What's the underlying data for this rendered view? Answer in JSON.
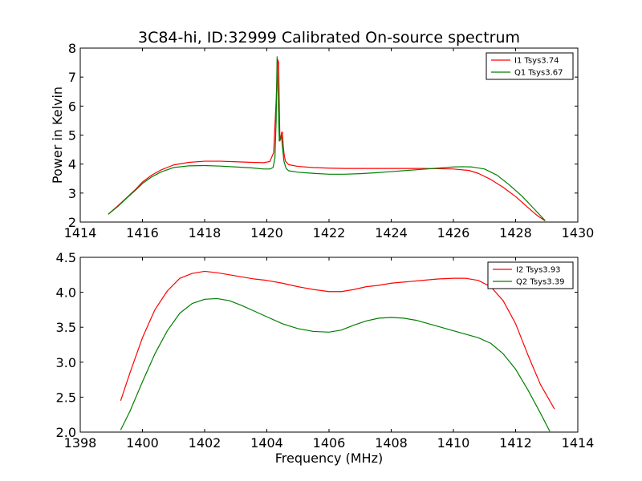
{
  "title": "3C84-hi, ID:32999 Calibrated On-source spectrum",
  "colors": {
    "red": "#ff0000",
    "green": "#007f00"
  },
  "chart_data": [
    {
      "type": "line",
      "ylabel": "Power in Kelvin",
      "xlabel": "",
      "xlim": [
        1414,
        1430
      ],
      "ylim": [
        2,
        8
      ],
      "xticks": [
        1414,
        1416,
        1418,
        1420,
        1422,
        1424,
        1426,
        1428,
        1430
      ],
      "yticks": [
        2,
        3,
        4,
        5,
        6,
        7,
        8
      ],
      "xtick_labels": [
        "1414",
        "1416",
        "1418",
        "1420",
        "1422",
        "1424",
        "1426",
        "1428",
        "1430"
      ],
      "ytick_labels": [
        "2",
        "3",
        "4",
        "5",
        "6",
        "7",
        "8"
      ],
      "grid": false,
      "legend_position": "top-right",
      "series": [
        {
          "name": "I1 Tsys3.74",
          "color": "#ff0000",
          "x": [
            1414.9,
            1415.2,
            1415.5,
            1415.8,
            1416.0,
            1416.3,
            1416.6,
            1417.0,
            1417.5,
            1418.0,
            1418.5,
            1419.0,
            1419.5,
            1419.9,
            1420.1,
            1420.22,
            1420.3,
            1420.35,
            1420.38,
            1420.42,
            1420.48,
            1420.5,
            1420.53,
            1420.56,
            1420.6,
            1420.7,
            1421.0,
            1421.5,
            1422.0,
            1422.5,
            1423.0,
            1423.5,
            1424.0,
            1424.5,
            1425.0,
            1425.5,
            1426.0,
            1426.5,
            1426.8,
            1427.2,
            1427.6,
            1428.0,
            1428.4,
            1428.7,
            1428.95
          ],
          "y": [
            2.27,
            2.55,
            2.85,
            3.15,
            3.38,
            3.62,
            3.8,
            3.97,
            4.06,
            4.1,
            4.1,
            4.08,
            4.06,
            4.05,
            4.09,
            4.4,
            6.2,
            7.6,
            7.5,
            4.8,
            5.1,
            5.1,
            4.6,
            4.3,
            4.1,
            3.98,
            3.92,
            3.88,
            3.86,
            3.85,
            3.85,
            3.85,
            3.85,
            3.85,
            3.85,
            3.84,
            3.83,
            3.78,
            3.68,
            3.47,
            3.2,
            2.88,
            2.5,
            2.22,
            2.04
          ]
        },
        {
          "name": "Q1 Tsys3.67",
          "color": "#007f00",
          "x": [
            1414.9,
            1415.2,
            1415.5,
            1415.8,
            1416.0,
            1416.3,
            1416.6,
            1417.0,
            1417.5,
            1418.0,
            1418.5,
            1419.0,
            1419.5,
            1419.9,
            1420.1,
            1420.2,
            1420.26,
            1420.3,
            1420.33,
            1420.36,
            1420.4,
            1420.44,
            1420.47,
            1420.5,
            1420.55,
            1420.62,
            1420.7,
            1421.0,
            1421.5,
            1422.0,
            1422.5,
            1423.0,
            1423.5,
            1424.0,
            1424.5,
            1425.0,
            1425.5,
            1426.0,
            1426.3,
            1426.6,
            1427.0,
            1427.4,
            1427.8,
            1428.2,
            1428.6,
            1428.95
          ],
          "y": [
            2.27,
            2.53,
            2.83,
            3.12,
            3.33,
            3.56,
            3.73,
            3.88,
            3.94,
            3.95,
            3.93,
            3.9,
            3.87,
            3.83,
            3.83,
            3.88,
            4.2,
            5.5,
            7.7,
            6.5,
            4.8,
            4.85,
            5.0,
            4.6,
            4.1,
            3.85,
            3.77,
            3.72,
            3.68,
            3.65,
            3.65,
            3.67,
            3.7,
            3.74,
            3.78,
            3.82,
            3.86,
            3.9,
            3.91,
            3.9,
            3.83,
            3.62,
            3.28,
            2.9,
            2.45,
            2.05
          ]
        }
      ]
    },
    {
      "type": "line",
      "ylabel": "",
      "xlabel": "Frequency (MHz)",
      "xlim": [
        1398,
        1414
      ],
      "ylim": [
        2.0,
        4.5
      ],
      "xticks": [
        1398,
        1400,
        1402,
        1404,
        1406,
        1408,
        1410,
        1412,
        1414
      ],
      "yticks": [
        2.0,
        2.5,
        3.0,
        3.5,
        4.0,
        4.5
      ],
      "xtick_labels": [
        "1398",
        "1400",
        "1402",
        "1404",
        "1406",
        "1408",
        "1410",
        "1412",
        "1414"
      ],
      "ytick_labels": [
        "2.0",
        "2.5",
        "3.0",
        "3.5",
        "4.0",
        "4.5"
      ],
      "grid": false,
      "legend_position": "top-right",
      "series": [
        {
          "name": "I2 Tsys3.93",
          "color": "#ff0000",
          "x": [
            1399.3,
            1399.6,
            1400.0,
            1400.4,
            1400.8,
            1401.2,
            1401.6,
            1402.0,
            1402.4,
            1402.8,
            1403.2,
            1403.6,
            1404.0,
            1404.5,
            1405.0,
            1405.5,
            1406.0,
            1406.4,
            1406.8,
            1407.2,
            1407.6,
            1408.0,
            1408.5,
            1409.0,
            1409.5,
            1410.0,
            1410.4,
            1410.8,
            1411.2,
            1411.6,
            1412.0,
            1412.4,
            1412.8,
            1413.25
          ],
          "y": [
            2.45,
            2.85,
            3.35,
            3.75,
            4.02,
            4.2,
            4.27,
            4.3,
            4.28,
            4.25,
            4.22,
            4.19,
            4.17,
            4.13,
            4.08,
            4.04,
            4.01,
            4.01,
            4.04,
            4.08,
            4.1,
            4.13,
            4.15,
            4.17,
            4.19,
            4.2,
            4.2,
            4.17,
            4.08,
            3.88,
            3.55,
            3.1,
            2.68,
            2.33
          ]
        },
        {
          "name": "Q2 Tsys3.39",
          "color": "#007f00",
          "x": [
            1399.3,
            1399.6,
            1400.0,
            1400.4,
            1400.8,
            1401.2,
            1401.6,
            1402.0,
            1402.4,
            1402.8,
            1403.2,
            1403.6,
            1404.0,
            1404.5,
            1405.0,
            1405.5,
            1406.0,
            1406.4,
            1406.8,
            1407.2,
            1407.6,
            1408.0,
            1408.4,
            1408.8,
            1409.2,
            1409.6,
            1410.0,
            1410.4,
            1410.8,
            1411.2,
            1411.6,
            1412.0,
            1412.4,
            1412.8,
            1413.1
          ],
          "y": [
            2.03,
            2.3,
            2.72,
            3.12,
            3.45,
            3.7,
            3.84,
            3.9,
            3.91,
            3.88,
            3.81,
            3.73,
            3.65,
            3.55,
            3.48,
            3.44,
            3.43,
            3.46,
            3.53,
            3.59,
            3.63,
            3.64,
            3.63,
            3.6,
            3.55,
            3.5,
            3.45,
            3.4,
            3.35,
            3.27,
            3.12,
            2.9,
            2.6,
            2.27,
            2.01
          ]
        }
      ]
    }
  ]
}
